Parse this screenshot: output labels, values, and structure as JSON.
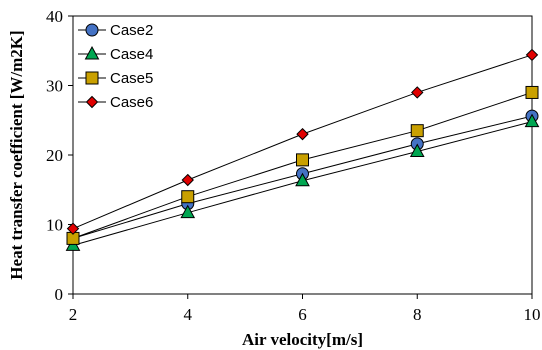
{
  "chart_data": {
    "type": "line",
    "xlabel": "Air velocity[m/s]",
    "ylabel": "Heat transfer coefficient [W/m2K]",
    "x": [
      2,
      4,
      6,
      8,
      10
    ],
    "xlim": [
      2,
      10
    ],
    "ylim": [
      0,
      40
    ],
    "xticks": [
      "2",
      "4",
      "6",
      "8",
      "10"
    ],
    "yticks": [
      "0",
      "10",
      "20",
      "30",
      "40"
    ],
    "grid": false,
    "legend_position": "top-left",
    "series": [
      {
        "name": "Case2",
        "marker": "circle",
        "color": "#4472C4",
        "values": [
          8.0,
          13.0,
          17.3,
          21.6,
          25.6
        ]
      },
      {
        "name": "Case4",
        "marker": "triangle",
        "color": "#00A651",
        "values": [
          7.0,
          11.7,
          16.3,
          20.5,
          24.8
        ]
      },
      {
        "name": "Case5",
        "marker": "square",
        "color": "#C9A000",
        "values": [
          8.0,
          14.0,
          19.3,
          23.5,
          29.0
        ]
      },
      {
        "name": "Case6",
        "marker": "diamond",
        "color": "#E00000",
        "values": [
          9.4,
          16.4,
          23.0,
          29.0,
          34.4
        ]
      }
    ]
  }
}
